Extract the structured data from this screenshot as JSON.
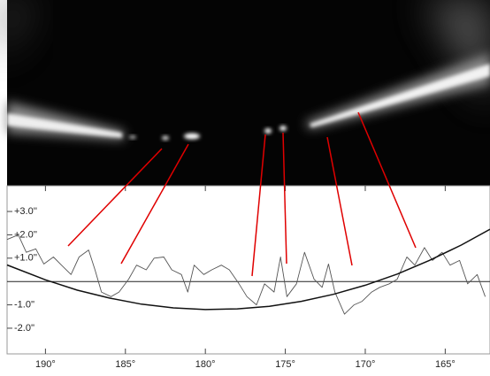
{
  "chart_data": {
    "type": "line",
    "xlim": [
      192.4,
      162.2
    ],
    "xticks": [
      {
        "value": 190,
        "label": "190°"
      },
      {
        "value": 185,
        "label": "185°"
      },
      {
        "value": 180,
        "label": "180°"
      },
      {
        "value": 175,
        "label": "175°"
      },
      {
        "value": 170,
        "label": "170°"
      },
      {
        "value": 165,
        "label": "165°"
      }
    ],
    "ylim": [
      -3.1,
      4.1
    ],
    "yticks": [
      {
        "value": 3,
        "label": "+3.0''"
      },
      {
        "value": 2,
        "label": "+2.0''"
      },
      {
        "value": 1,
        "label": "+1.0''"
      },
      {
        "value": -1,
        "label": "-1.0''"
      },
      {
        "value": -2,
        "label": "-2.0''"
      }
    ],
    "series": [
      {
        "color": "#555555",
        "x": [
          192.4,
          191.7,
          191.2,
          190.6,
          190.1,
          189.5,
          189.0,
          188.4,
          187.9,
          187.3,
          186.9,
          186.5,
          185.9,
          185.4,
          184.8,
          184.3,
          183.7,
          183.2,
          182.6,
          182.1,
          181.5,
          181.1,
          180.7,
          180.1,
          179.6,
          179.0,
          178.5,
          177.9,
          177.4,
          176.8,
          176.3,
          175.7,
          175.3,
          174.9,
          174.3,
          173.8,
          173.2,
          172.7,
          172.3,
          171.9,
          171.3,
          170.7,
          170.2,
          169.6,
          169.1,
          168.5,
          168.0,
          167.4,
          166.9,
          166.3,
          165.8,
          165.2,
          164.7,
          164.1,
          163.6,
          163.0,
          162.5
        ],
        "values": [
          1.8,
          2.0,
          1.25,
          1.4,
          0.75,
          1.05,
          0.7,
          0.3,
          1.05,
          1.35,
          0.5,
          -0.45,
          -0.65,
          -0.45,
          0.1,
          0.7,
          0.5,
          1.0,
          1.05,
          0.5,
          0.3,
          -0.45,
          0.7,
          0.3,
          0.5,
          0.7,
          0.5,
          -0.1,
          -0.65,
          -1.0,
          -0.1,
          -0.45,
          1.05,
          -0.65,
          -0.1,
          1.25,
          0.1,
          -0.25,
          0.75,
          -0.45,
          -1.4,
          -1.0,
          -0.85,
          -0.45,
          -0.25,
          -0.1,
          0.1,
          1.05,
          0.7,
          1.45,
          0.9,
          1.25,
          0.7,
          0.9,
          -0.1,
          0.3,
          -0.65
        ]
      },
      {
        "color": "#111111",
        "x": [
          192.4,
          190,
          188,
          186,
          184,
          182,
          180,
          178,
          176,
          174,
          172,
          170,
          168,
          166,
          164,
          162.2
        ],
        "values": [
          0.71,
          0.07,
          -0.37,
          -0.71,
          -0.97,
          -1.13,
          -1.2,
          -1.17,
          -1.06,
          -0.85,
          -0.55,
          -0.16,
          0.32,
          0.9,
          1.56,
          2.24
        ]
      }
    ]
  }
}
